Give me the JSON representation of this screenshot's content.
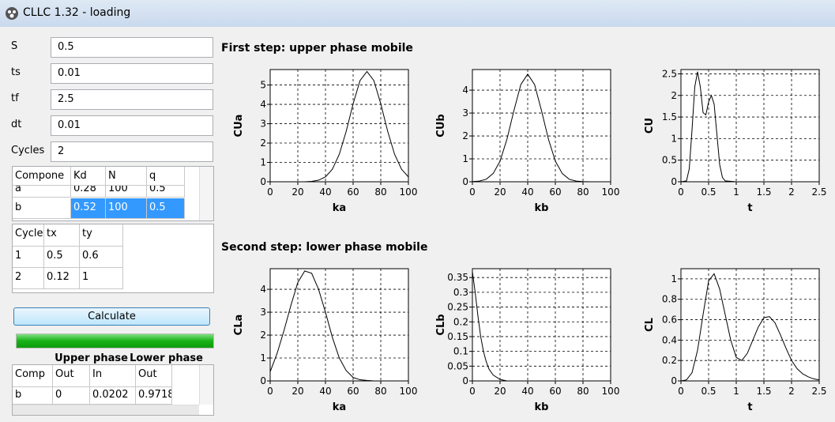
{
  "window": {
    "title": "CLLC 1.32 - loading"
  },
  "params": [
    {
      "label": "S",
      "value": "0.5"
    },
    {
      "label": "ts",
      "value": "0.01"
    },
    {
      "label": "tf",
      "value": "2.5"
    },
    {
      "label": "dt",
      "value": "0.01"
    },
    {
      "label": "Cycles",
      "value": "2"
    }
  ],
  "components_table": {
    "header": [
      "Compone",
      "Kd",
      "N",
      "q"
    ],
    "rows": [
      [
        "a",
        "0.28",
        "100",
        "0.5"
      ],
      [
        "b",
        "0.52",
        "100",
        "0.5"
      ]
    ]
  },
  "cycles_table": {
    "header": [
      "Cycle",
      "tx",
      "ty"
    ],
    "rows": [
      [
        "1",
        "0.5",
        "0.6"
      ],
      [
        "2",
        "0.12",
        "1"
      ]
    ]
  },
  "button": "Calculate",
  "results_table": {
    "groups": [
      "Upper phase",
      "Lower phase"
    ],
    "header": [
      "Comp",
      "Out",
      "In",
      "Out"
    ],
    "rows": [
      [
        "b",
        "0",
        "0.0202",
        "0.9718"
      ]
    ]
  },
  "sections": [
    "First step: upper phase mobile",
    "Second step: lower phase mobile"
  ],
  "chart_data": [
    {
      "type": "line",
      "x_label": "ka",
      "y_label": "CUa",
      "x": [
        0,
        5,
        10,
        15,
        20,
        25,
        30,
        35,
        40,
        45,
        50,
        55,
        60,
        65,
        70,
        75,
        80,
        85,
        90,
        95,
        100
      ],
      "values": [
        0,
        0,
        0,
        0,
        0,
        0,
        0.02,
        0.08,
        0.25,
        0.65,
        1.42,
        2.61,
        4.03,
        5.23,
        5.7,
        5.23,
        4.03,
        2.61,
        1.42,
        0.65,
        0.25
      ],
      "xlim": [
        0,
        100
      ],
      "ylim": [
        0,
        5.8
      ],
      "xticks": [
        0,
        20,
        40,
        60,
        80,
        100
      ],
      "yticks": [
        0,
        1,
        2,
        3,
        4,
        5
      ],
      "grid": true,
      "color": "#000000"
    },
    {
      "type": "line",
      "x_label": "kb",
      "y_label": "CUb",
      "x": [
        0,
        5,
        10,
        15,
        20,
        25,
        30,
        35,
        40,
        45,
        50,
        55,
        60,
        65,
        70,
        75,
        80,
        85,
        90,
        95,
        100
      ],
      "values": [
        0.01,
        0.03,
        0.11,
        0.36,
        0.9,
        1.86,
        3.1,
        4.24,
        4.7,
        4.24,
        3.1,
        1.86,
        0.9,
        0.36,
        0.11,
        0.03,
        0.01,
        0,
        0,
        0,
        0
      ],
      "xlim": [
        0,
        100
      ],
      "ylim": [
        0,
        4.9
      ],
      "xticks": [
        0,
        20,
        40,
        60,
        80,
        100
      ],
      "yticks": [
        0,
        1,
        2,
        3,
        4
      ],
      "grid": true,
      "color": "#000000"
    },
    {
      "type": "line",
      "x_label": "t",
      "y_label": "CU",
      "x": [
        0,
        0.1,
        0.15,
        0.2,
        0.25,
        0.3,
        0.35,
        0.4,
        0.45,
        0.5,
        0.55,
        0.6,
        0.65,
        0.7,
        0.75,
        0.8,
        1,
        1.5,
        2,
        2.5
      ],
      "values": [
        0,
        0.02,
        0.3,
        1.2,
        2.2,
        2.55,
        2.2,
        1.6,
        1.55,
        1.85,
        2.0,
        1.8,
        1.1,
        0.4,
        0.1,
        0.02,
        0,
        0,
        0,
        0
      ],
      "xlim": [
        0,
        2.5
      ],
      "ylim": [
        0,
        2.6
      ],
      "xticks": [
        0,
        0.5,
        1,
        1.5,
        2,
        2.5
      ],
      "yticks": [
        0,
        0.5,
        1,
        1.5,
        2,
        2.5
      ],
      "grid": true,
      "color": "#000000"
    },
    {
      "type": "line",
      "x_label": "ka",
      "y_label": "CLa",
      "x": [
        0,
        5,
        10,
        15,
        20,
        25,
        30,
        35,
        40,
        45,
        50,
        55,
        60,
        65,
        70,
        75,
        80,
        85,
        90,
        95,
        100
      ],
      "values": [
        0.4,
        1.2,
        2.2,
        3.3,
        4.3,
        4.8,
        4.7,
        4.0,
        3.0,
        1.9,
        1.0,
        0.45,
        0.15,
        0.05,
        0.02,
        0,
        0,
        0,
        0,
        0,
        0
      ],
      "xlim": [
        0,
        100
      ],
      "ylim": [
        0,
        4.9
      ],
      "xticks": [
        0,
        20,
        40,
        60,
        80,
        100
      ],
      "yticks": [
        0,
        1,
        2,
        3,
        4
      ],
      "grid": true,
      "color": "#000000"
    },
    {
      "type": "line",
      "x_label": "kb",
      "y_label": "CLb",
      "x": [
        0,
        2,
        4,
        6,
        8,
        10,
        12,
        15,
        20,
        25,
        40,
        60,
        80,
        100
      ],
      "values": [
        0.37,
        0.3,
        0.22,
        0.15,
        0.1,
        0.065,
        0.04,
        0.02,
        0.005,
        0,
        0,
        0,
        0,
        0
      ],
      "xlim": [
        0,
        100
      ],
      "ylim": [
        0,
        0.38
      ],
      "xticks": [
        0,
        20,
        40,
        60,
        80,
        100
      ],
      "yticks": [
        0,
        0.05,
        0.1,
        0.15,
        0.2,
        0.25,
        0.3,
        0.35
      ],
      "grid": true,
      "color": "#000000"
    },
    {
      "type": "line",
      "x_label": "t",
      "y_label": "CL",
      "x": [
        0,
        0.1,
        0.2,
        0.3,
        0.4,
        0.5,
        0.6,
        0.7,
        0.8,
        0.9,
        1.0,
        1.1,
        1.2,
        1.3,
        1.4,
        1.5,
        1.6,
        1.7,
        1.8,
        1.9,
        2.0,
        2.1,
        2.2,
        2.3,
        2.4,
        2.5
      ],
      "values": [
        0,
        0.01,
        0.08,
        0.3,
        0.65,
        0.98,
        1.05,
        0.9,
        0.65,
        0.4,
        0.23,
        0.2,
        0.27,
        0.4,
        0.53,
        0.62,
        0.63,
        0.57,
        0.45,
        0.32,
        0.2,
        0.12,
        0.07,
        0.04,
        0.02,
        0.01
      ],
      "xlim": [
        0,
        2.5
      ],
      "ylim": [
        0,
        1.1
      ],
      "xticks": [
        0,
        0.5,
        1,
        1.5,
        2,
        2.5
      ],
      "yticks": [
        0,
        0.2,
        0.4,
        0.6,
        0.8,
        1
      ],
      "grid": true,
      "color": "#000000"
    }
  ]
}
